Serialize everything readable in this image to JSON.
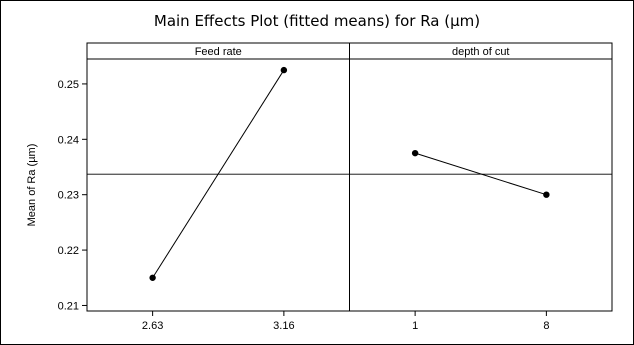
{
  "chart_data": {
    "type": "line",
    "title": "Main Effects Plot (fitted means) for Ra (µm)",
    "ylabel": "Mean of Ra (µm)",
    "ylim": [
      0.209,
      0.2545
    ],
    "yticks": [
      0.21,
      0.22,
      0.23,
      0.24,
      0.25
    ],
    "ytick_labels": [
      "0.21",
      "0.22",
      "0.23",
      "0.24",
      "0.25"
    ],
    "grand_mean": 0.2337,
    "grid": false,
    "panels": [
      {
        "label": "Feed rate",
        "categories": [
          "2.63",
          "3.16"
        ],
        "values": [
          0.215,
          0.2525
        ]
      },
      {
        "label": "depth of cut",
        "categories": [
          "1",
          "8"
        ],
        "values": [
          0.2375,
          0.23
        ]
      }
    ]
  }
}
